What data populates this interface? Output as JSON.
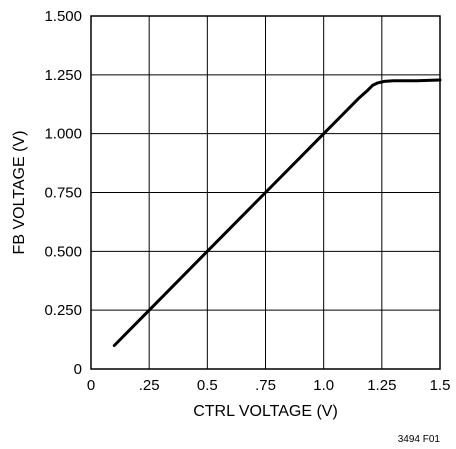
{
  "chart_data": {
    "type": "line",
    "title": "",
    "xlabel": "CTRL VOLTAGE (V)",
    "ylabel": "FB VOLTAGE (V)",
    "xlim": [
      0,
      1.5
    ],
    "ylim": [
      0,
      1.5
    ],
    "x_ticks": [
      {
        "value": 0,
        "label": "0"
      },
      {
        "value": 0.25,
        "label": ".25"
      },
      {
        "value": 0.5,
        "label": "0.5"
      },
      {
        "value": 0.75,
        "label": ".75"
      },
      {
        "value": 1.0,
        "label": "1.0"
      },
      {
        "value": 1.25,
        "label": "1.25"
      },
      {
        "value": 1.5,
        "label": "1.5"
      }
    ],
    "y_ticks": [
      {
        "value": 0,
        "label": "0"
      },
      {
        "value": 0.25,
        "label": "0.250"
      },
      {
        "value": 0.5,
        "label": "0.500"
      },
      {
        "value": 0.75,
        "label": "0.750"
      },
      {
        "value": 1.0,
        "label": "1.000"
      },
      {
        "value": 1.25,
        "label": "1.250"
      },
      {
        "value": 1.5,
        "label": "1.500"
      }
    ],
    "grid": true,
    "series": [
      {
        "points": [
          [
            0.1,
            0.1
          ],
          [
            0.25,
            0.25
          ],
          [
            0.5,
            0.5
          ],
          [
            0.75,
            0.75
          ],
          [
            1.0,
            1.0
          ],
          [
            1.15,
            1.15
          ],
          [
            1.19,
            1.185
          ],
          [
            1.21,
            1.205
          ],
          [
            1.23,
            1.215
          ],
          [
            1.26,
            1.222
          ],
          [
            1.3,
            1.225
          ],
          [
            1.4,
            1.225
          ],
          [
            1.5,
            1.228
          ]
        ]
      }
    ],
    "figure_id": "3494 F01"
  }
}
